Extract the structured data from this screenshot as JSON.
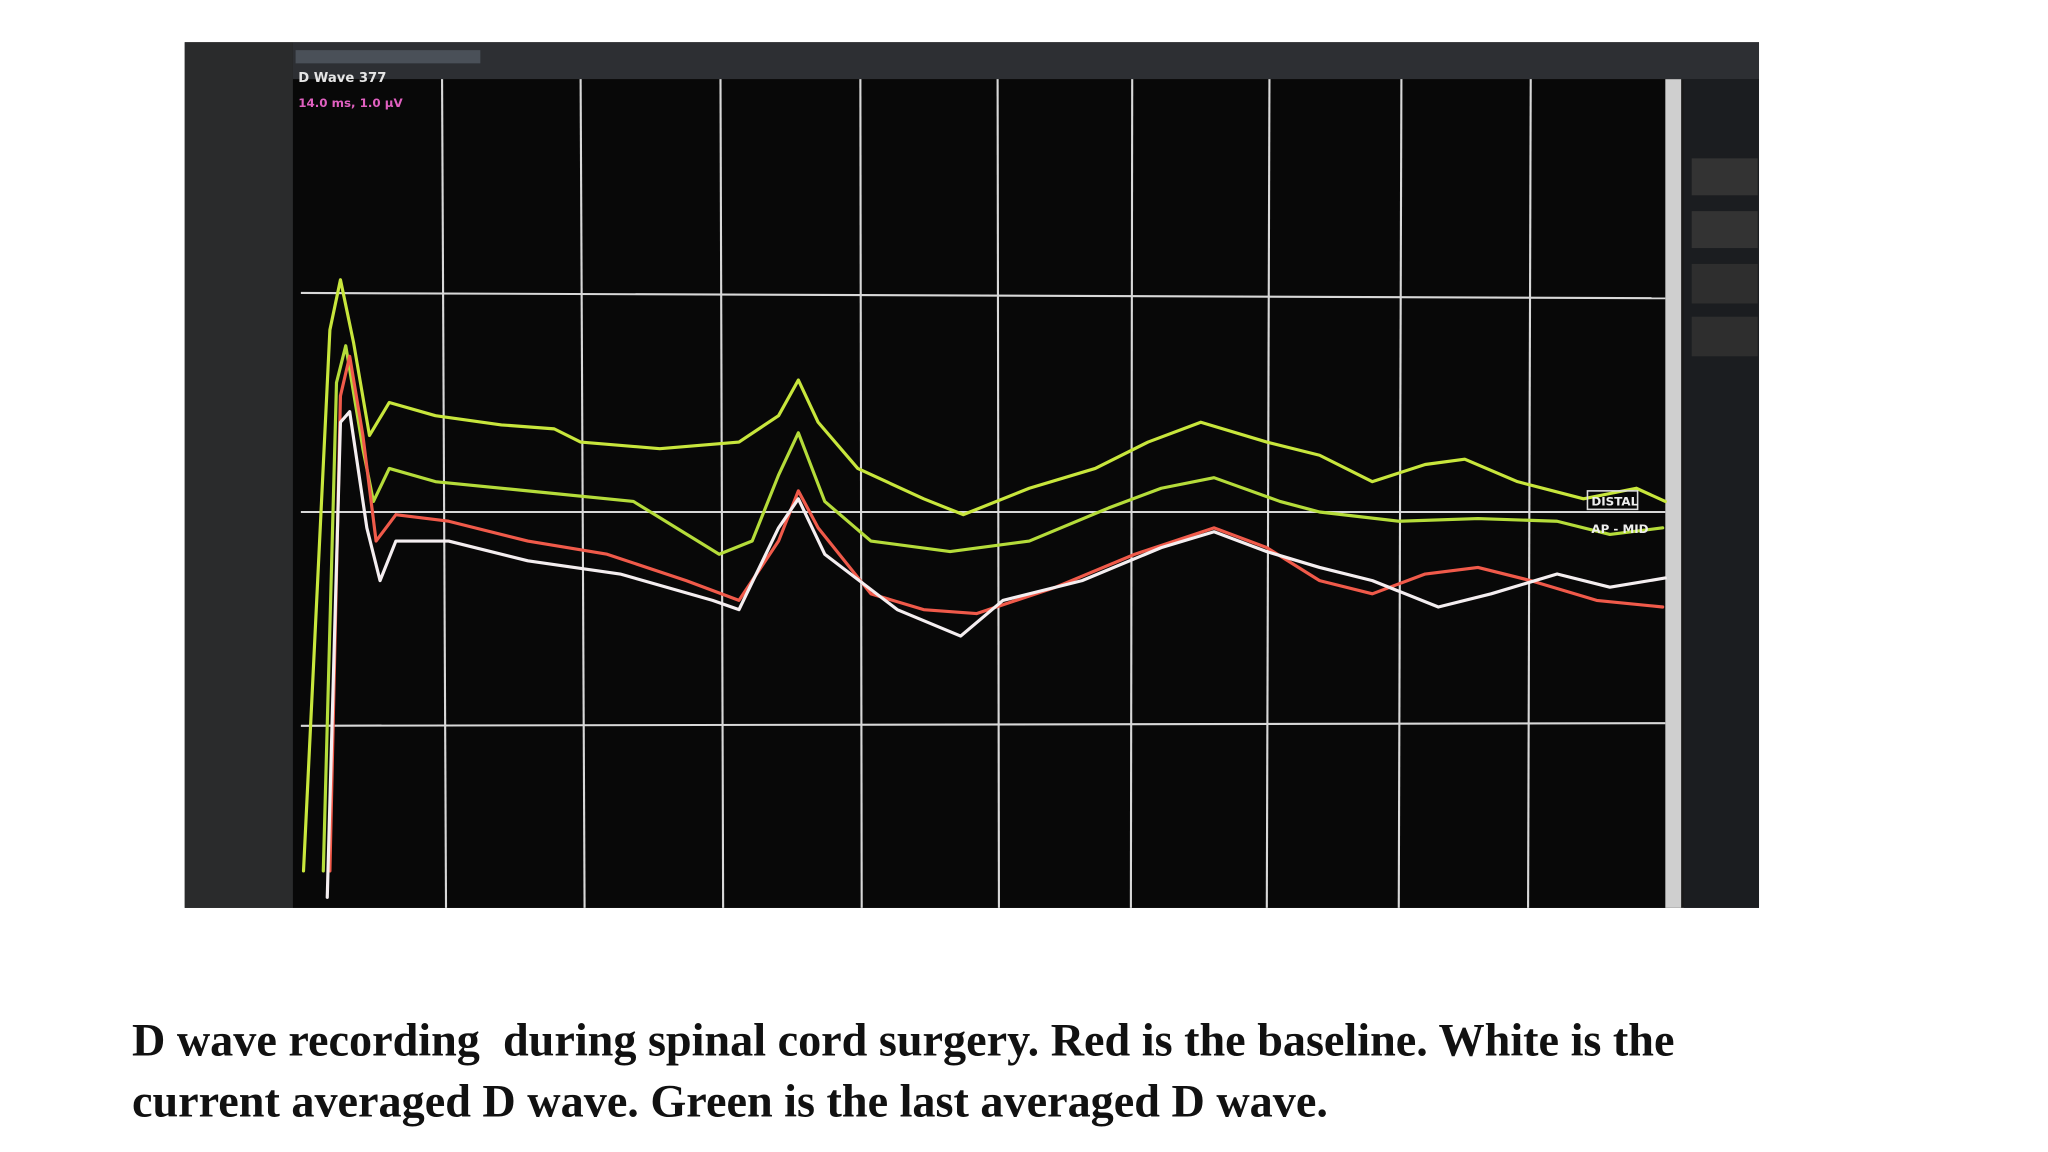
{
  "screen": {
    "trace_title": "D Wave 377",
    "scale": "14.0 ms, 1.0 µV",
    "labels": [
      "DISTAL",
      "AP - MID"
    ]
  },
  "caption": {
    "lines": [
      "D wave recording  during spinal cord surgery. Red is the baseline. White is the",
      "current averaged D wave. Green is the last averaged D wave."
    ]
  }
}
